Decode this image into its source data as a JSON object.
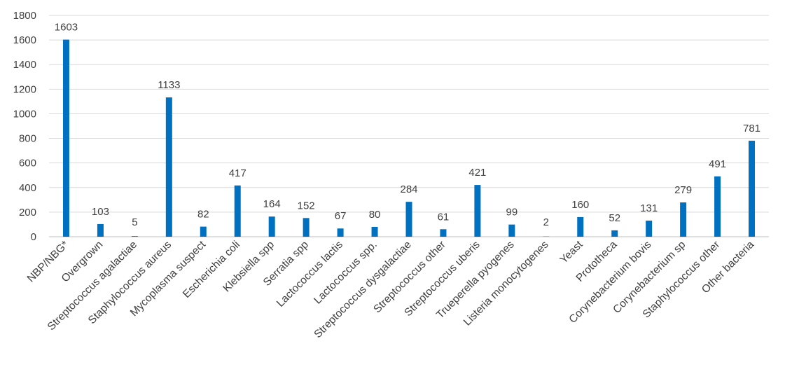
{
  "chart_data": {
    "type": "bar",
    "title": "",
    "xlabel": "",
    "ylabel": "",
    "ylim": [
      0,
      1800
    ],
    "yticks": [
      0,
      200,
      400,
      600,
      800,
      1000,
      1200,
      1400,
      1600,
      1800
    ],
    "grid": true,
    "legend": "none",
    "bar_color": "#0070C0",
    "categories": [
      "NBP/NBG*",
      "Overgrown",
      "Streptococcus agalactiae",
      "Staphylococcus aureus",
      "Mycoplasma suspect",
      "Escherichia coli",
      "Klebsiella spp",
      "Serratia spp",
      "Lactococcus lactis",
      "Lactococcus spp.",
      "Streptococcus dysgalactiae",
      "Streptococcus other",
      "Streptococcus uberis",
      "Trueperella pyogenes",
      "Listeria monocytogenes",
      "Yeast",
      "Prototheca",
      "Corynebacterium bovis",
      "Corynebacterium sp",
      "Staphylococcus other",
      "Other bacteria"
    ],
    "values": [
      1603,
      103,
      5,
      1133,
      82,
      417,
      164,
      152,
      67,
      80,
      284,
      61,
      421,
      99,
      2,
      160,
      52,
      131,
      279,
      491,
      781
    ]
  }
}
